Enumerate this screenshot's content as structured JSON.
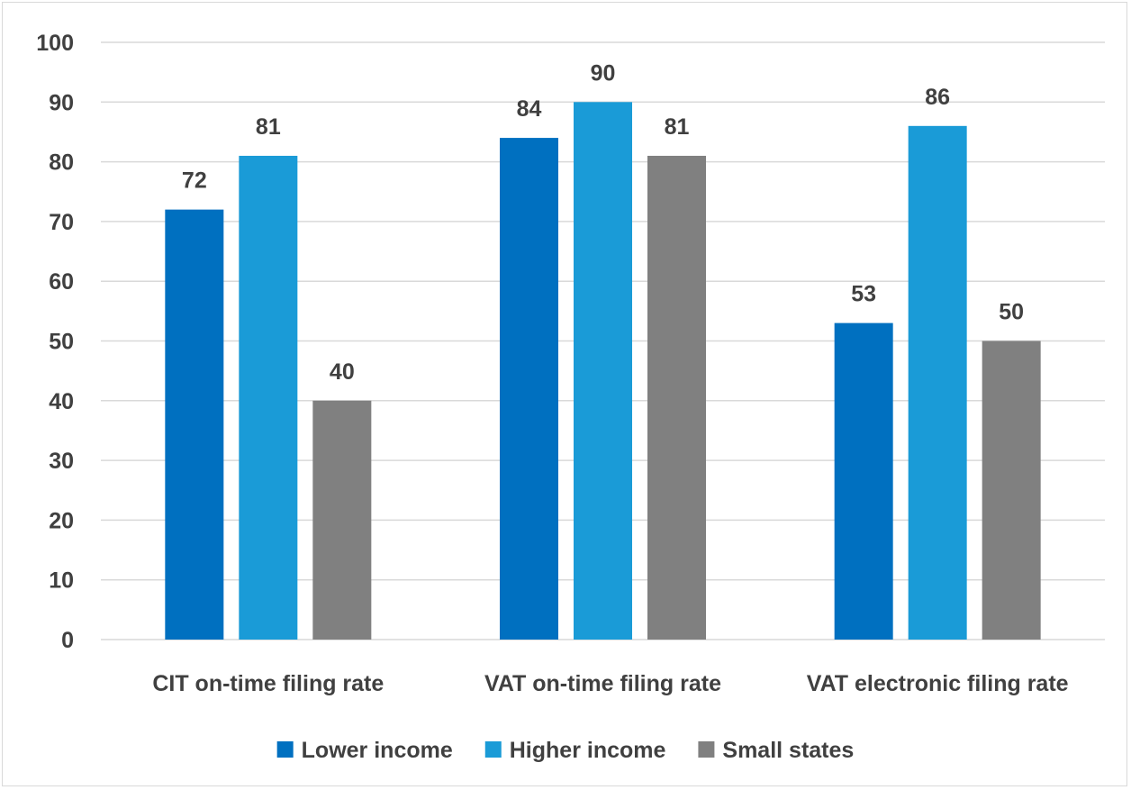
{
  "chart_data": {
    "type": "bar",
    "categories": [
      "CIT on-time filing rate",
      "VAT on-time filing rate",
      "VAT electronic filing rate"
    ],
    "series": [
      {
        "name": "Lower income",
        "values": [
          72,
          84,
          53
        ],
        "color": "#0070c0"
      },
      {
        "name": "Higher income",
        "values": [
          81,
          90,
          86
        ],
        "color": "#1a9bd7"
      },
      {
        "name": "Small states",
        "values": [
          40,
          81,
          50
        ],
        "color": "#808080"
      }
    ],
    "ylim": [
      0,
      100
    ],
    "yticks": [
      0,
      10,
      20,
      30,
      40,
      50,
      60,
      70,
      80,
      90,
      100
    ],
    "grid": true,
    "gridColor": "#d9d9d9",
    "legend": "bottom",
    "data_labels": true
  }
}
